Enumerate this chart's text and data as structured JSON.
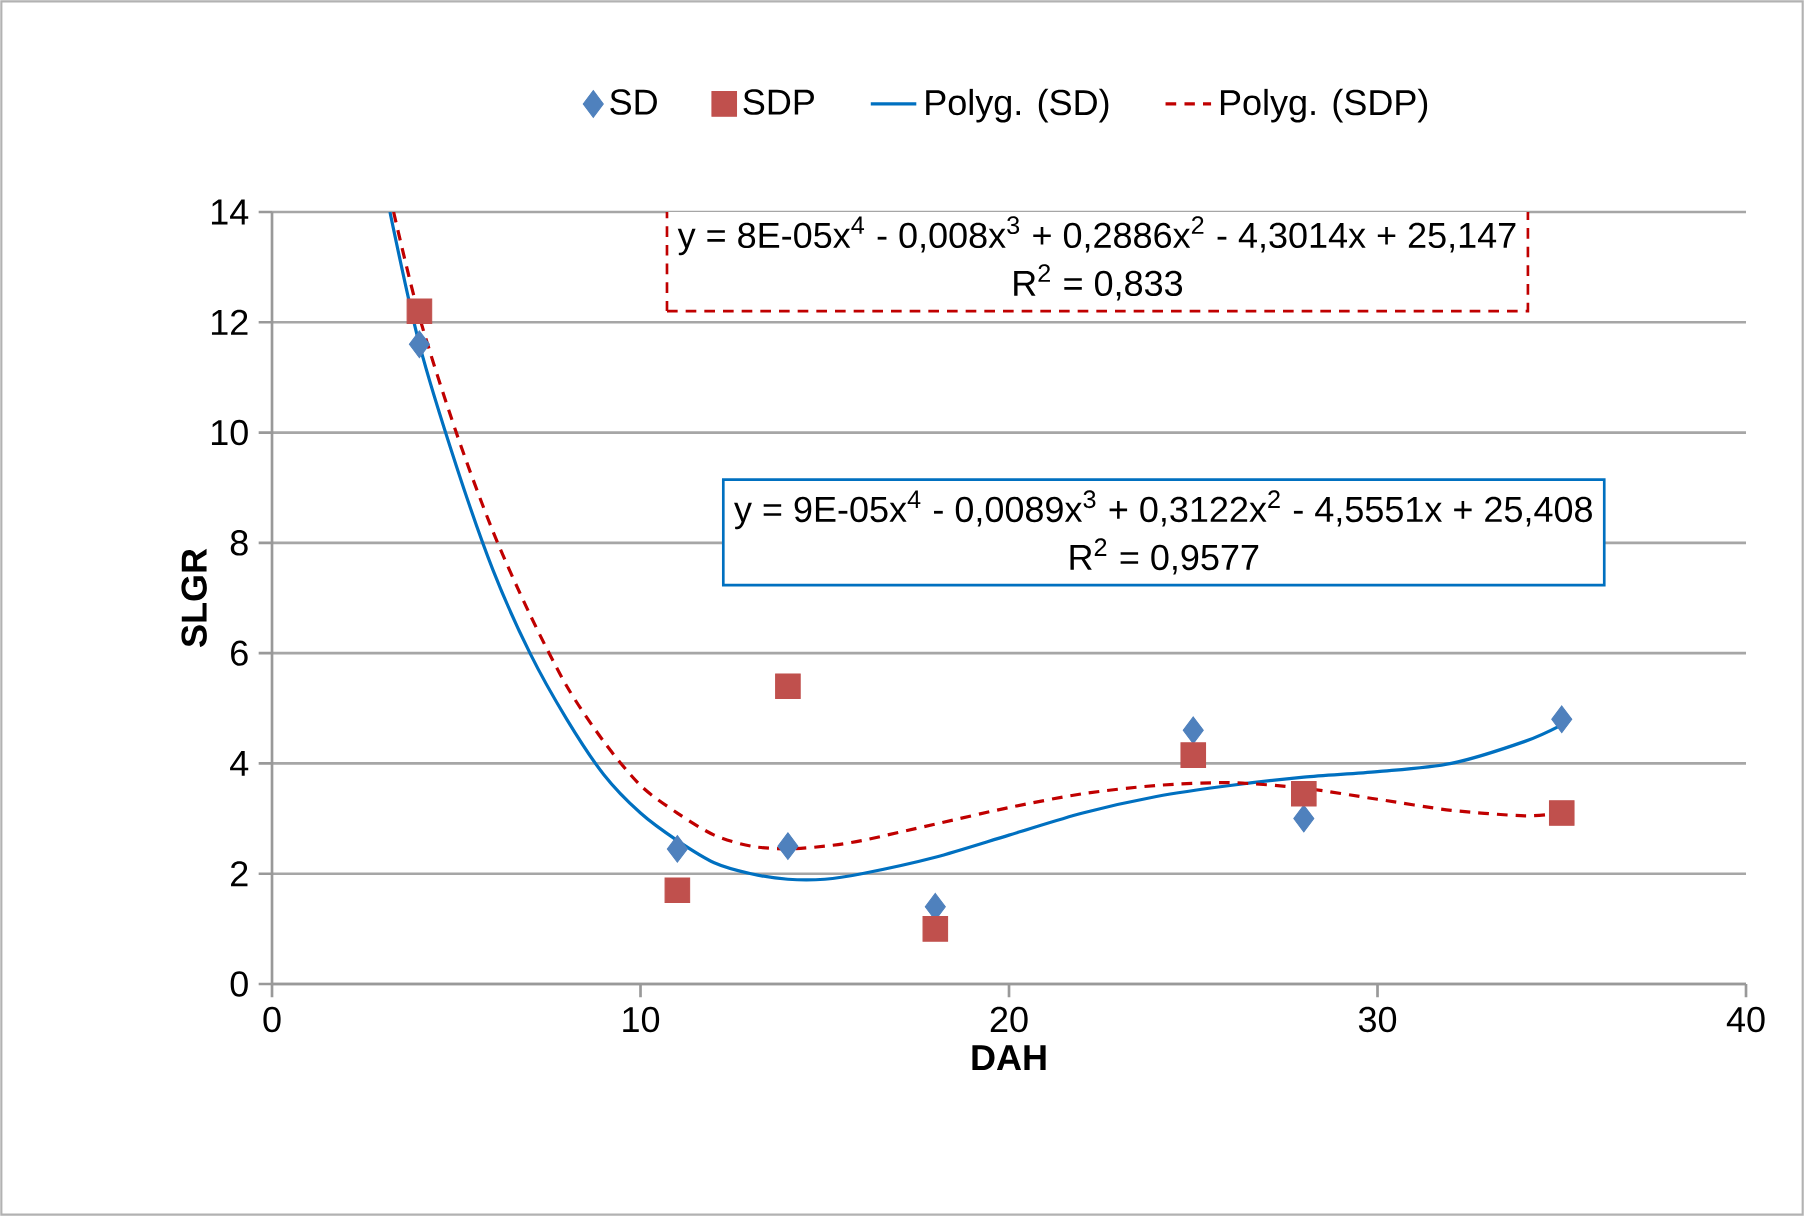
{
  "chart_data": {
    "type": "scatter",
    "xlabel": "DAH",
    "ylabel": "SLGR",
    "xlim": [
      0,
      40
    ],
    "xticks": [
      0,
      10,
      20,
      30,
      40
    ],
    "ylim": [
      0,
      14
    ],
    "yticks": [
      0,
      2,
      4,
      6,
      8,
      10,
      12,
      14
    ],
    "grid": "y",
    "legend": "top",
    "series": [
      {
        "name": "SD",
        "marker": "diamond",
        "color": "#4f81bd",
        "x": [
          4,
          11,
          14,
          18,
          25,
          28,
          35
        ],
        "values": [
          11.6,
          2.45,
          2.5,
          1.4,
          4.6,
          3.0,
          4.8
        ]
      },
      {
        "name": "SDP",
        "marker": "square",
        "color": "#c0504d",
        "x": [
          4,
          11,
          14,
          18,
          25,
          28,
          35
        ],
        "values": [
          12.2,
          1.7,
          5.4,
          1.0,
          4.15,
          3.45,
          3.1
        ]
      },
      {
        "name": "Polyg. (SD)",
        "type": "line",
        "marker": "none",
        "line_style": "solid",
        "color": "#0070c0",
        "x": [
          3.2,
          4,
          5,
          6,
          7,
          8,
          9,
          10,
          11,
          12,
          13,
          14,
          15,
          16,
          18,
          20,
          22,
          24,
          26,
          28,
          30,
          32,
          34,
          35
        ],
        "values": [
          14,
          11.6,
          9.4,
          7.5,
          6.0,
          4.8,
          3.8,
          3.1,
          2.6,
          2.2,
          2.0,
          1.9,
          1.9,
          2.0,
          2.3,
          2.7,
          3.1,
          3.4,
          3.6,
          3.75,
          3.85,
          4.0,
          4.4,
          4.7
        ]
      },
      {
        "name": "Polyg. (SDP)",
        "type": "line",
        "marker": "none",
        "line_style": "dashed",
        "color": "#c00000",
        "x": [
          3.3,
          4,
          5,
          6,
          7,
          8,
          9,
          10,
          11,
          12,
          13,
          14,
          15,
          16,
          18,
          20,
          22,
          24,
          26,
          28,
          30,
          32,
          34,
          35
        ],
        "values": [
          14,
          12.1,
          10.0,
          8.2,
          6.7,
          5.4,
          4.4,
          3.6,
          3.1,
          2.7,
          2.5,
          2.45,
          2.5,
          2.6,
          2.9,
          3.2,
          3.45,
          3.6,
          3.65,
          3.55,
          3.35,
          3.15,
          3.05,
          3.1
        ]
      }
    ],
    "annotations": [
      "y = 8E-05x$^{4}$ - 0,008x$^{3}$ + 0,2886x$^{2}$ - 4,3014x + 25,147",
      "R$^{2}$ = 0,833",
      "y = 9E-05x$^{4}$ - 0,0089x$^{3}$ + 0,3122x$^{2}$ - 4,5551x + 25,408",
      "R$^{2}$ = 0,9577"
    ]
  }
}
